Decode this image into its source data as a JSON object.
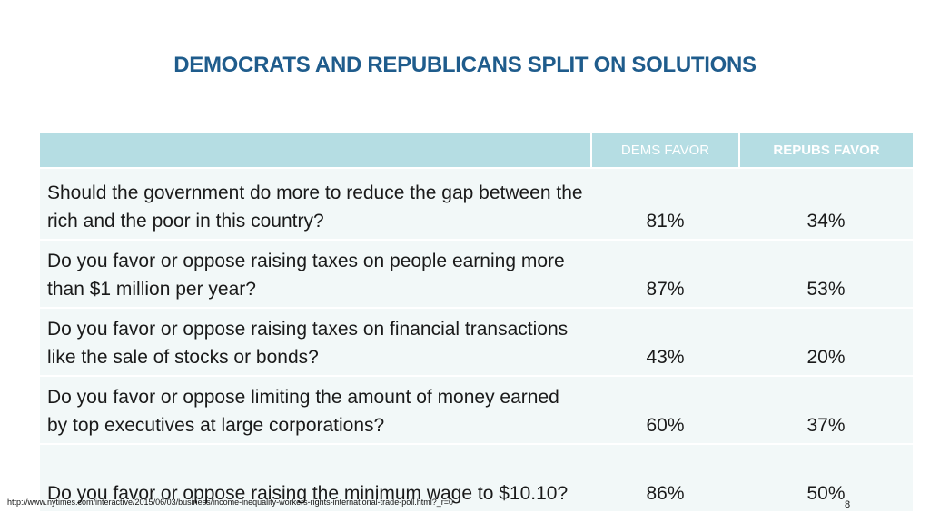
{
  "title": "DEMOCRATS AND REPUBLICANS SPLIT ON SOLUTIONS",
  "table": {
    "headers": {
      "question": "",
      "dems": "DEMS FAVOR",
      "repubs": "REPUBS FAVOR"
    },
    "rows": [
      {
        "question": "Should the government do more to reduce the gap between the rich and the poor in this country?",
        "dems": "81%",
        "repubs": "34%"
      },
      {
        "question": "Do you favor or oppose raising taxes on people earning more than $1 million per year?",
        "dems": "87%",
        "repubs": "53%"
      },
      {
        "question": "Do you favor or oppose raising taxes on financial transactions like the sale of stocks or bonds?",
        "dems": "43%",
        "repubs": "20%"
      },
      {
        "question": "Do you favor or oppose limiting the amount of money earned by top executives at large corporations?",
        "dems": "60%",
        "repubs": "37%"
      },
      {
        "question": "Do you favor or oppose raising the minimum wage to $10.10?",
        "dems": "86%",
        "repubs": "50%"
      }
    ]
  },
  "footer": {
    "source_url": "http://www.nytimes.com/interactive/2015/06/03/business/income-inequality-workers-rights-international-trade-poll.html?_r=0",
    "page_number": "8"
  },
  "colors": {
    "title": "#1f5c8c",
    "header_bg": "#b5dde3",
    "row_bg": "#f2f8f8"
  }
}
